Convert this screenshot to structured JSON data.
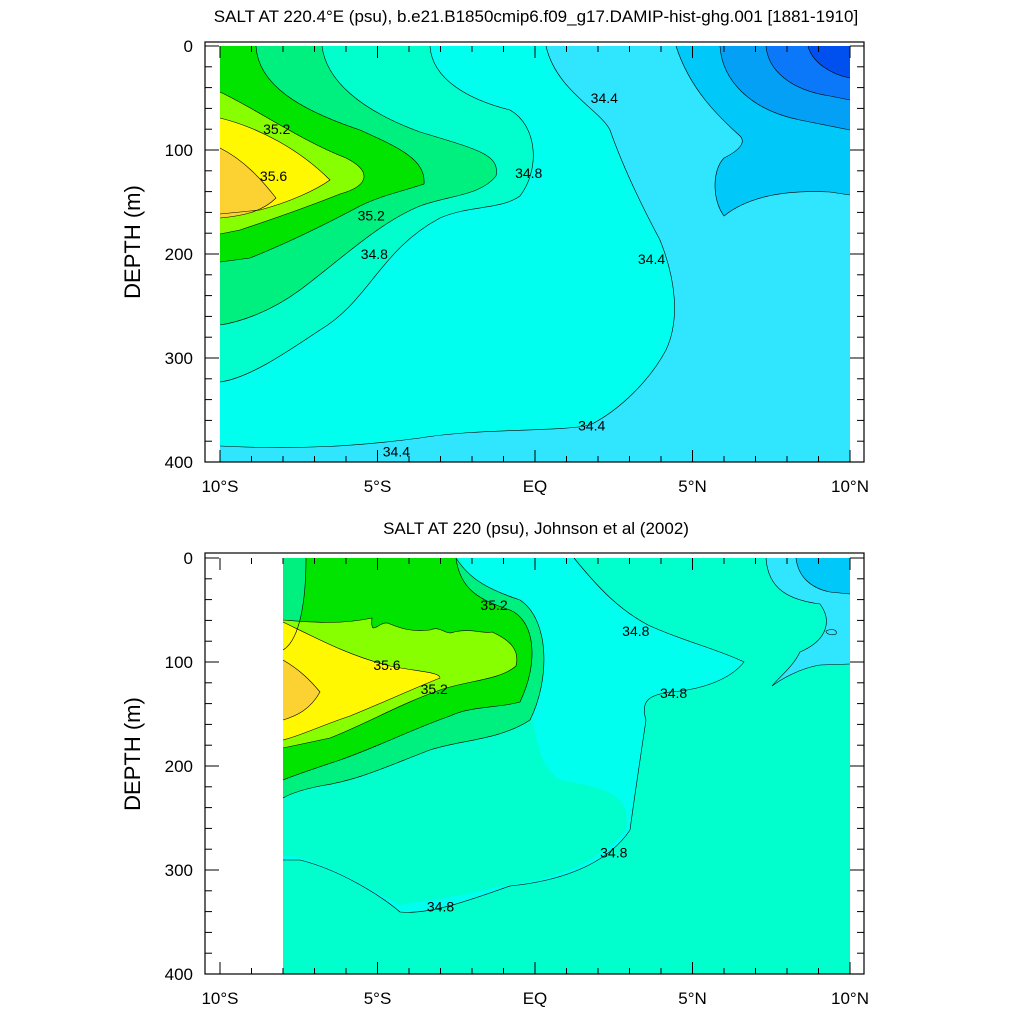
{
  "chart_data": [
    {
      "type": "contour",
      "title": "SALT AT 220.4°E (psu), b.e21.B1850cmip6.f09_g17.DAMIP-hist-ghg.001 [1881-1910]",
      "ylabel": "DEPTH (m)",
      "xlabel": "",
      "x_range": [
        -10,
        10
      ],
      "y_range": [
        0,
        400
      ],
      "y_inverted": true,
      "x_ticks": [
        "10°S",
        "5°S",
        "EQ",
        "5°N",
        "10°N"
      ],
      "y_ticks": [
        "0",
        "100",
        "200",
        "300",
        "400"
      ],
      "contour_interval": 0.2,
      "contour_levels": [
        33.6,
        33.8,
        34.0,
        34.2,
        34.4,
        34.6,
        34.8,
        35.0,
        35.2,
        35.4,
        35.6,
        35.8
      ],
      "labeled_contours": [
        {
          "text": "35.2",
          "x": -8.2,
          "y": 80
        },
        {
          "text": "35.6",
          "x": -8.3,
          "y": 125
        },
        {
          "text": "35.2",
          "x": -5.2,
          "y": 163
        },
        {
          "text": "34.8",
          "x": -5.1,
          "y": 200
        },
        {
          "text": "34.8",
          "x": -0.2,
          "y": 122
        },
        {
          "text": "34.4",
          "x": 2.2,
          "y": 50
        },
        {
          "text": "34.4",
          "x": 3.7,
          "y": 205
        },
        {
          "text": "34.4",
          "x": 1.8,
          "y": 365
        },
        {
          "text": "34.4",
          "x": -4.4,
          "y": 390
        }
      ],
      "grid": false,
      "legend": "none"
    },
    {
      "type": "contour",
      "title": "SALT AT 220 (psu), Johnson et al (2002)",
      "ylabel": "DEPTH (m)",
      "xlabel": "",
      "x_range": [
        -10,
        10
      ],
      "y_range": [
        0,
        400
      ],
      "y_inverted": true,
      "data_x_range": [
        -8,
        10
      ],
      "data_y_range": [
        5,
        400
      ],
      "x_ticks": [
        "10°S",
        "5°S",
        "EQ",
        "5°N",
        "10°N"
      ],
      "y_ticks": [
        "0",
        "100",
        "200",
        "300",
        "400"
      ],
      "contour_interval": 0.2,
      "contour_levels": [
        34.2,
        34.4,
        34.6,
        34.8,
        35.0,
        35.2,
        35.4,
        35.6,
        35.8
      ],
      "labeled_contours": [
        {
          "text": "35.2",
          "x": -1.3,
          "y": 45
        },
        {
          "text": "34.8",
          "x": 3.2,
          "y": 70
        },
        {
          "text": "35.6",
          "x": -4.7,
          "y": 103
        },
        {
          "text": "35.2",
          "x": -3.2,
          "y": 126
        },
        {
          "text": "34.8",
          "x": 4.4,
          "y": 130
        },
        {
          "text": "34.8",
          "x": 2.5,
          "y": 283
        },
        {
          "text": "34.8",
          "x": -3.0,
          "y": 335
        }
      ],
      "grid": false,
      "legend": "none"
    }
  ],
  "colors": {
    "s33_6": "#0050f0",
    "s33_8": "#0a78f8",
    "s34_0": "#04a0f6",
    "s34_2": "#00c8f8",
    "s34_4": "#30e6ff",
    "s34_6": "#00ffee",
    "s34_8": "#00ffcc",
    "s35_0": "#00f080",
    "s35_2": "#00e400",
    "s35_4": "#88ff00",
    "s35_6": "#fff800",
    "s35_8": "#fcd232"
  }
}
